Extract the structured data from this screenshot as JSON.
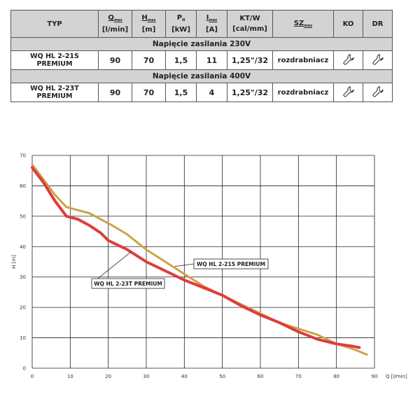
{
  "table": {
    "headers": {
      "typ": "TYP",
      "q": {
        "sym": "Q",
        "sub": "max",
        "unit": "[l/min]"
      },
      "h": {
        "sym": "H",
        "sub": "max",
        "unit": "[m]"
      },
      "p": {
        "sym": "P",
        "sub": "N",
        "unit": "[kW]"
      },
      "i": {
        "sym": "I",
        "sub": "max",
        "unit": "[A]"
      },
      "kt": {
        "sym": "KT/W",
        "unit": "[cal/mm]"
      },
      "sz": {
        "sym": "SZ",
        "sub": "max"
      },
      "ko": "KO",
      "dr": "DR"
    },
    "groups": [
      {
        "voltage": "Napięcie zasilania 230V",
        "row": {
          "model_line1": "WQ HL 2-21S",
          "model_line2": "PREMIUM",
          "q": "90",
          "h": "70",
          "p": "1,5",
          "i": "11",
          "kt": "1,25\"/32",
          "sz": "rozdrabniacz",
          "ko_icon": "wrench-icon",
          "dr_icon": "wrench-icon"
        }
      },
      {
        "voltage": "Napięcie zasilania 400V",
        "row": {
          "model_line1": "WQ HL 2-23T",
          "model_line2": "PREMIUM",
          "q": "90",
          "h": "70",
          "p": "1,5",
          "i": "4",
          "kt": "1,25\"/32",
          "sz": "rozdrabniacz",
          "ko_icon": "wrench-icon",
          "dr_icon": "wrench-icon"
        }
      }
    ]
  },
  "chart_data": {
    "type": "line",
    "xlabel": "Q [l/min]",
    "ylabel": "H [m]",
    "xlim": [
      0,
      90
    ],
    "ylim": [
      0,
      70
    ],
    "xticks": [
      0,
      10,
      20,
      30,
      40,
      50,
      60,
      70,
      80,
      90
    ],
    "yticks": [
      0,
      10,
      20,
      30,
      40,
      50,
      60,
      70
    ],
    "grid": true,
    "series": [
      {
        "name": "WQ HL 2-21S PREMIUM",
        "color": "#c9a448",
        "x": [
          0,
          3,
          6,
          9,
          12,
          15,
          18,
          21,
          25,
          30,
          35,
          40,
          45,
          50,
          55,
          60,
          65,
          70,
          75,
          80,
          84,
          88
        ],
        "y": [
          67,
          62,
          57,
          53,
          52,
          51,
          49,
          47,
          44,
          39,
          35,
          31,
          27,
          24,
          21,
          18,
          15,
          13,
          11,
          8,
          6.5,
          4.5
        ]
      },
      {
        "name": "WQ HL 2-23T PREMIUM",
        "color": "#e03c3c",
        "x": [
          0,
          3,
          6,
          9,
          12,
          15,
          18,
          20,
          25,
          30,
          35,
          40,
          45,
          50,
          55,
          60,
          65,
          70,
          75,
          80,
          84,
          86
        ],
        "y": [
          66,
          61,
          55,
          50,
          49,
          47,
          44.5,
          42,
          39,
          35,
          32,
          29,
          26.5,
          24,
          20.5,
          17.5,
          15,
          12,
          9.5,
          8,
          7.3,
          6.8
        ]
      }
    ]
  }
}
